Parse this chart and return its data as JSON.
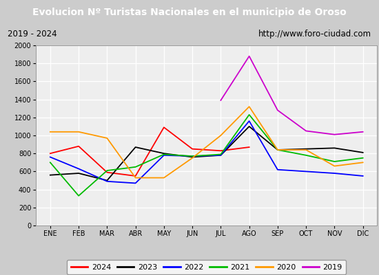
{
  "title": "Evolucion Nº Turistas Nacionales en el municipio de Oroso",
  "subtitle_left": "2019 - 2024",
  "subtitle_right": "http://www.foro-ciudad.com",
  "months": [
    "ENE",
    "FEB",
    "MAR",
    "ABR",
    "MAY",
    "JUN",
    "JUL",
    "AGO",
    "SEP",
    "OCT",
    "NOV",
    "DIC"
  ],
  "ylim": [
    0,
    2000
  ],
  "yticks": [
    0,
    200,
    400,
    600,
    800,
    1000,
    1200,
    1400,
    1600,
    1800,
    2000
  ],
  "series": {
    "2024": {
      "color": "#ff0000",
      "values": [
        800,
        880,
        590,
        550,
        1090,
        850,
        830,
        870,
        null,
        null,
        null,
        null
      ]
    },
    "2023": {
      "color": "#000000",
      "values": [
        560,
        580,
        500,
        870,
        800,
        760,
        780,
        1100,
        840,
        850,
        860,
        810
      ]
    },
    "2022": {
      "color": "#0000ff",
      "values": [
        760,
        630,
        490,
        470,
        780,
        770,
        780,
        1160,
        620,
        600,
        580,
        550
      ]
    },
    "2021": {
      "color": "#00bb00",
      "values": [
        700,
        330,
        610,
        650,
        790,
        770,
        790,
        1230,
        840,
        780,
        710,
        750
      ]
    },
    "2020": {
      "color": "#ff9900",
      "values": [
        1040,
        1040,
        970,
        530,
        530,
        750,
        1000,
        1320,
        840,
        840,
        660,
        700
      ]
    },
    "2019": {
      "color": "#cc00cc",
      "values": [
        null,
        null,
        null,
        null,
        null,
        null,
        1390,
        1880,
        1280,
        1050,
        1010,
        1040
      ]
    }
  },
  "title_bg": "#4488bb",
  "title_color": "#ffffff",
  "subtitle_bg": "#e0e0e0",
  "plot_bg": "#eeeeee",
  "grid_color": "#ffffff",
  "outer_bg": "#cccccc",
  "legend_labels": [
    "2024",
    "2023",
    "2022",
    "2021",
    "2020",
    "2019"
  ]
}
